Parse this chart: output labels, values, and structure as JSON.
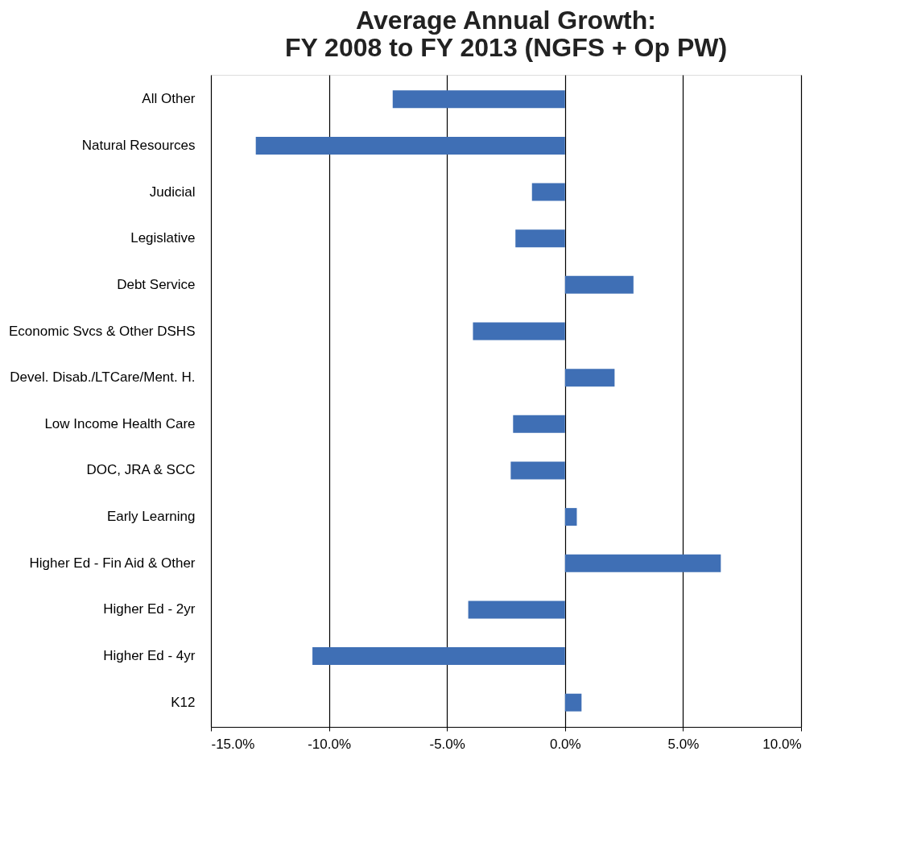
{
  "chart_data": {
    "type": "bar",
    "orientation": "horizontal",
    "title": "Average Annual Growth:\nFY 2008 to FY 2013 (NGFS + Op PW)",
    "categories": [
      "All Other",
      "Natural Resources",
      "Judicial",
      "Legislative",
      "Debt Service",
      "Economic Svcs & Other DSHS",
      "Devel. Disab./LTCare/Ment. H.",
      "Low Income Health Care",
      "DOC, JRA & SCC",
      "Early Learning",
      "Higher Ed - Fin Aid & Other",
      "Higher Ed - 2yr",
      "Higher Ed - 4yr",
      "K12"
    ],
    "values": [
      -7.3,
      -13.1,
      -1.4,
      -2.1,
      2.9,
      -3.9,
      2.1,
      -2.2,
      -2.3,
      0.5,
      6.6,
      -4.1,
      -10.7,
      0.7
    ],
    "color": "#3f6fb5",
    "xlim": [
      -15,
      10
    ],
    "xticks": [
      {
        "value": -15,
        "label": "-15.0%"
      },
      {
        "value": -10,
        "label": "-10.0%"
      },
      {
        "value": -5,
        "label": "-5.0%"
      },
      {
        "value": 0,
        "label": "0.0%"
      },
      {
        "value": 5,
        "label": "5.0%"
      },
      {
        "value": 10,
        "label": "10.0%"
      }
    ],
    "grid": "x"
  }
}
